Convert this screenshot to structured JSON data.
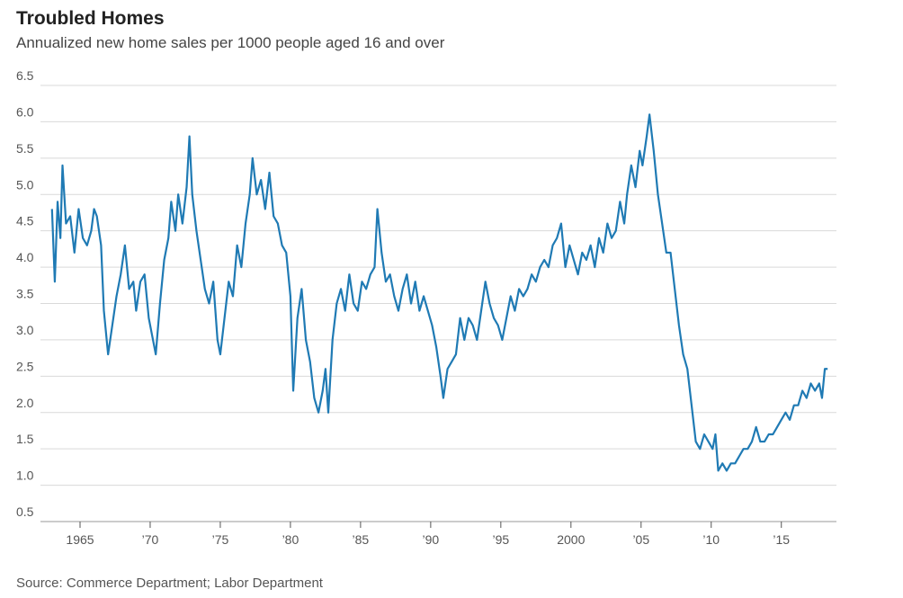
{
  "chart_data": {
    "type": "line",
    "title": "Troubled Homes",
    "subtitle": "Annualized new home sales per 1000 people aged 16 and over",
    "source": "Source: Commerce Department; Labor Department",
    "color": "#1f7ab4",
    "grid": true,
    "xlim": [
      1962.5,
      2018.8
    ],
    "xticks": [
      {
        "value": 1965,
        "label": "1965"
      },
      {
        "value": 1970,
        "label": "’70"
      },
      {
        "value": 1975,
        "label": "’75"
      },
      {
        "value": 1980,
        "label": "’80"
      },
      {
        "value": 1985,
        "label": "’85"
      },
      {
        "value": 1990,
        "label": "’90"
      },
      {
        "value": 1995,
        "label": "’95"
      },
      {
        "value": 2000,
        "label": "2000"
      },
      {
        "value": 2005,
        "label": "’05"
      },
      {
        "value": 2010,
        "label": "’10"
      },
      {
        "value": 2015,
        "label": "’15"
      }
    ],
    "ylim": [
      0.5,
      6.5
    ],
    "yticks": [
      0.5,
      {
        "value": 1,
        "label": "1.0"
      },
      1.5,
      {
        "value": 2,
        "label": "2.0"
      },
      2.5,
      {
        "value": 3,
        "label": "3.0"
      },
      3.5,
      {
        "value": 4,
        "label": "4.0"
      },
      4.5,
      {
        "value": 5,
        "label": "5.0"
      },
      5.5,
      {
        "value": 6,
        "label": "6.0"
      },
      6.5
    ],
    "x": [
      1963.0,
      1963.2,
      1963.4,
      1963.6,
      1963.75,
      1964.0,
      1964.3,
      1964.6,
      1964.9,
      1965.2,
      1965.5,
      1965.8,
      1966.0,
      1966.2,
      1966.5,
      1966.7,
      1967.0,
      1967.3,
      1967.6,
      1967.9,
      1968.2,
      1968.5,
      1968.8,
      1969.0,
      1969.3,
      1969.6,
      1969.9,
      1970.2,
      1970.4,
      1970.7,
      1971.0,
      1971.3,
      1971.5,
      1971.8,
      1972.0,
      1972.3,
      1972.6,
      1972.8,
      1973.0,
      1973.3,
      1973.6,
      1973.9,
      1974.2,
      1974.5,
      1974.8,
      1975.0,
      1975.3,
      1975.6,
      1975.9,
      1976.2,
      1976.5,
      1976.8,
      1977.1,
      1977.3,
      1977.6,
      1977.9,
      1978.2,
      1978.5,
      1978.8,
      1979.1,
      1979.4,
      1979.7,
      1980.0,
      1980.2,
      1980.5,
      1980.8,
      1981.1,
      1981.4,
      1981.7,
      1982.0,
      1982.3,
      1982.5,
      1982.7,
      1983.0,
      1983.3,
      1983.6,
      1983.9,
      1984.2,
      1984.5,
      1984.8,
      1985.1,
      1985.4,
      1985.7,
      1986.0,
      1986.2,
      1986.5,
      1986.8,
      1987.1,
      1987.4,
      1987.7,
      1988.0,
      1988.3,
      1988.6,
      1988.9,
      1989.2,
      1989.5,
      1989.8,
      1990.1,
      1990.4,
      1990.7,
      1990.9,
      1991.2,
      1991.5,
      1991.8,
      1992.1,
      1992.4,
      1992.7,
      1993.0,
      1993.3,
      1993.6,
      1993.9,
      1994.2,
      1994.5,
      1994.8,
      1995.1,
      1995.4,
      1995.7,
      1996.0,
      1996.3,
      1996.6,
      1996.9,
      1997.2,
      1997.5,
      1997.8,
      1998.1,
      1998.4,
      1998.7,
      1999.0,
      1999.3,
      1999.6,
      1999.9,
      2000.2,
      2000.5,
      2000.8,
      2001.1,
      2001.4,
      2001.7,
      2002.0,
      2002.3,
      2002.6,
      2002.9,
      2003.2,
      2003.5,
      2003.8,
      2004.0,
      2004.3,
      2004.6,
      2004.9,
      2005.1,
      2005.4,
      2005.6,
      2005.9,
      2006.2,
      2006.5,
      2006.8,
      2007.1,
      2007.4,
      2007.7,
      2008.0,
      2008.3,
      2008.6,
      2008.9,
      2009.2,
      2009.5,
      2009.8,
      2010.1,
      2010.3,
      2010.5,
      2010.8,
      2011.1,
      2011.4,
      2011.7,
      2012.0,
      2012.3,
      2012.6,
      2012.9,
      2013.2,
      2013.5,
      2013.8,
      2014.1,
      2014.4,
      2014.7,
      2015.0,
      2015.3,
      2015.6,
      2015.9,
      2016.2,
      2016.5,
      2016.8,
      2017.1,
      2017.4,
      2017.7,
      2017.9,
      2018.1,
      2018.3
    ],
    "values": [
      4.8,
      3.8,
      4.9,
      4.4,
      5.4,
      4.6,
      4.7,
      4.2,
      4.8,
      4.4,
      4.3,
      4.5,
      4.8,
      4.7,
      4.3,
      3.4,
      2.8,
      3.2,
      3.6,
      3.9,
      4.3,
      3.7,
      3.8,
      3.4,
      3.8,
      3.9,
      3.3,
      3.0,
      2.8,
      3.5,
      4.1,
      4.4,
      4.9,
      4.5,
      5.0,
      4.6,
      5.1,
      5.8,
      5.0,
      4.5,
      4.1,
      3.7,
      3.5,
      3.8,
      3.0,
      2.8,
      3.3,
      3.8,
      3.6,
      4.3,
      4.0,
      4.6,
      5.0,
      5.5,
      5.0,
      5.2,
      4.8,
      5.3,
      4.7,
      4.6,
      4.3,
      4.2,
      3.6,
      2.3,
      3.3,
      3.7,
      3.0,
      2.7,
      2.2,
      2.0,
      2.3,
      2.6,
      2.0,
      3.0,
      3.5,
      3.7,
      3.4,
      3.9,
      3.5,
      3.4,
      3.8,
      3.7,
      3.9,
      4.0,
      4.8,
      4.2,
      3.8,
      3.9,
      3.6,
      3.4,
      3.7,
      3.9,
      3.5,
      3.8,
      3.4,
      3.6,
      3.4,
      3.2,
      2.9,
      2.5,
      2.2,
      2.6,
      2.7,
      2.8,
      3.3,
      3.0,
      3.3,
      3.2,
      3.0,
      3.4,
      3.8,
      3.5,
      3.3,
      3.2,
      3.0,
      3.3,
      3.6,
      3.4,
      3.7,
      3.6,
      3.7,
      3.9,
      3.8,
      4.0,
      4.1,
      4.0,
      4.3,
      4.4,
      4.6,
      4.0,
      4.3,
      4.1,
      3.9,
      4.2,
      4.1,
      4.3,
      4.0,
      4.4,
      4.2,
      4.6,
      4.4,
      4.5,
      4.9,
      4.6,
      5.0,
      5.4,
      5.1,
      5.6,
      5.4,
      5.8,
      6.1,
      5.6,
      5.0,
      4.6,
      4.2,
      4.2,
      3.7,
      3.2,
      2.8,
      2.6,
      2.1,
      1.6,
      1.5,
      1.7,
      1.6,
      1.5,
      1.7,
      1.2,
      1.3,
      1.2,
      1.3,
      1.3,
      1.4,
      1.5,
      1.5,
      1.6,
      1.8,
      1.6,
      1.6,
      1.7,
      1.7,
      1.8,
      1.9,
      2.0,
      1.9,
      2.1,
      2.1,
      2.3,
      2.2,
      2.4,
      2.3,
      2.4,
      2.2,
      2.6,
      2.6
    ]
  }
}
